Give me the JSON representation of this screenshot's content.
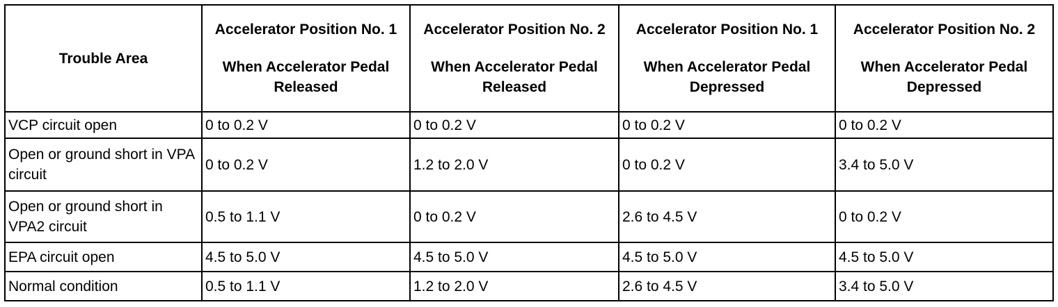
{
  "table": {
    "header": {
      "trouble_area": "Trouble Area",
      "columns": [
        {
          "position": "Accelerator Position No. 1",
          "condition": "When Accelerator Pedal Released"
        },
        {
          "position": "Accelerator Position No. 2",
          "condition": "When Accelerator Pedal Released"
        },
        {
          "position": "Accelerator Position No. 1",
          "condition": "When Accelerator Pedal Depressed"
        },
        {
          "position": "Accelerator Position No. 2",
          "condition": "When Accelerator Pedal Depressed"
        }
      ]
    },
    "rows": [
      [
        "VCP circuit open",
        "0 to 0.2 V",
        "0 to 0.2 V",
        "0 to 0.2 V",
        "0 to 0.2 V"
      ],
      [
        "Open or ground short in VPA circuit",
        "0 to 0.2 V",
        "1.2 to 2.0 V",
        "0 to 0.2 V",
        "3.4 to 5.0 V"
      ],
      [
        "Open or ground short in VPA2 circuit",
        "0.5 to 1.1 V",
        "0 to 0.2 V",
        "2.6 to 4.5 V",
        "0 to 0.2 V"
      ],
      [
        "EPA circuit open",
        "4.5 to 5.0 V",
        "4.5 to 5.0 V",
        "4.5 to 5.0 V",
        "4.5 to 5.0 V"
      ],
      [
        "Normal condition",
        "0.5 to 1.1 V",
        "1.2 to 2.0 V",
        "2.6 to 4.5 V",
        "3.4 to 5.0 V"
      ]
    ]
  }
}
